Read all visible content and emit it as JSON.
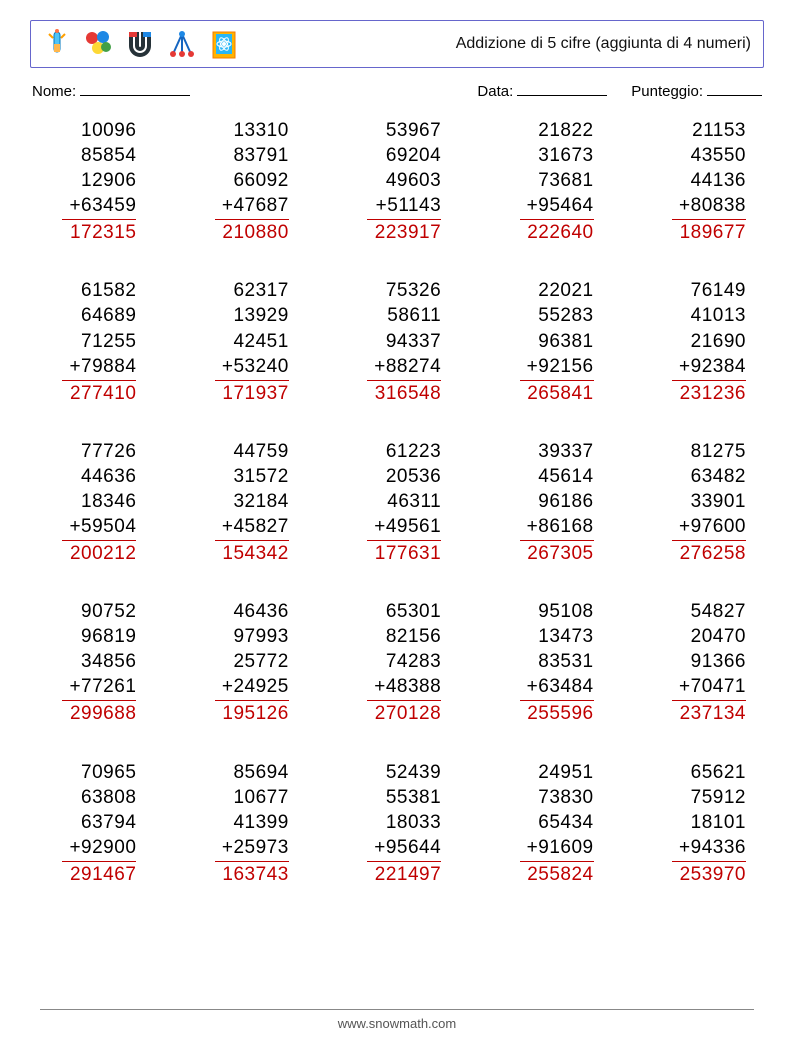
{
  "header": {
    "title": "Addizione di 5 cifre (aggiunta di 4 numeri)"
  },
  "info": {
    "name_label": "Nome:",
    "date_label": "Data:",
    "score_label": "Punteggio:"
  },
  "colors": {
    "answer": "#c00000",
    "header_border": "#6666cc",
    "text": "#000000",
    "background": "#ffffff"
  },
  "typography": {
    "body_fontsize": 15,
    "problem_fontsize": 19,
    "title_fontsize": 16
  },
  "layout": {
    "columns": 5,
    "rows": 5
  },
  "footer": {
    "text": "www.snowmath.com"
  },
  "problems": [
    {
      "nums": [
        "10096",
        "85854",
        "12906",
        "63459"
      ],
      "answer": "172315"
    },
    {
      "nums": [
        "13310",
        "83791",
        "66092",
        "47687"
      ],
      "answer": "210880"
    },
    {
      "nums": [
        "53967",
        "69204",
        "49603",
        "51143"
      ],
      "answer": "223917"
    },
    {
      "nums": [
        "21822",
        "31673",
        "73681",
        "95464"
      ],
      "answer": "222640"
    },
    {
      "nums": [
        "21153",
        "43550",
        "44136",
        "80838"
      ],
      "answer": "189677"
    },
    {
      "nums": [
        "61582",
        "64689",
        "71255",
        "79884"
      ],
      "answer": "277410"
    },
    {
      "nums": [
        "62317",
        "13929",
        "42451",
        "53240"
      ],
      "answer": "171937"
    },
    {
      "nums": [
        "75326",
        "58611",
        "94337",
        "88274"
      ],
      "answer": "316548"
    },
    {
      "nums": [
        "22021",
        "55283",
        "96381",
        "92156"
      ],
      "answer": "265841"
    },
    {
      "nums": [
        "76149",
        "41013",
        "21690",
        "92384"
      ],
      "answer": "231236"
    },
    {
      "nums": [
        "77726",
        "44636",
        "18346",
        "59504"
      ],
      "answer": "200212"
    },
    {
      "nums": [
        "44759",
        "31572",
        "32184",
        "45827"
      ],
      "answer": "154342"
    },
    {
      "nums": [
        "61223",
        "20536",
        "46311",
        "49561"
      ],
      "answer": "177631"
    },
    {
      "nums": [
        "39337",
        "45614",
        "96186",
        "86168"
      ],
      "answer": "267305"
    },
    {
      "nums": [
        "81275",
        "63482",
        "33901",
        "97600"
      ],
      "answer": "276258"
    },
    {
      "nums": [
        "90752",
        "96819",
        "34856",
        "77261"
      ],
      "answer": "299688"
    },
    {
      "nums": [
        "46436",
        "97993",
        "25772",
        "24925"
      ],
      "answer": "195126"
    },
    {
      "nums": [
        "65301",
        "82156",
        "74283",
        "48388"
      ],
      "answer": "270128"
    },
    {
      "nums": [
        "95108",
        "13473",
        "83531",
        "63484"
      ],
      "answer": "255596"
    },
    {
      "nums": [
        "54827",
        "20470",
        "91366",
        "70471"
      ],
      "answer": "237134"
    },
    {
      "nums": [
        "70965",
        "63808",
        "63794",
        "92900"
      ],
      "answer": "291467"
    },
    {
      "nums": [
        "85694",
        "10677",
        "41399",
        "25973"
      ],
      "answer": "163743"
    },
    {
      "nums": [
        "52439",
        "55381",
        "18033",
        "95644"
      ],
      "answer": "221497"
    },
    {
      "nums": [
        "24951",
        "73830",
        "65434",
        "91609"
      ],
      "answer": "255824"
    },
    {
      "nums": [
        "65621",
        "75912",
        "18101",
        "94336"
      ],
      "answer": "253970"
    }
  ]
}
